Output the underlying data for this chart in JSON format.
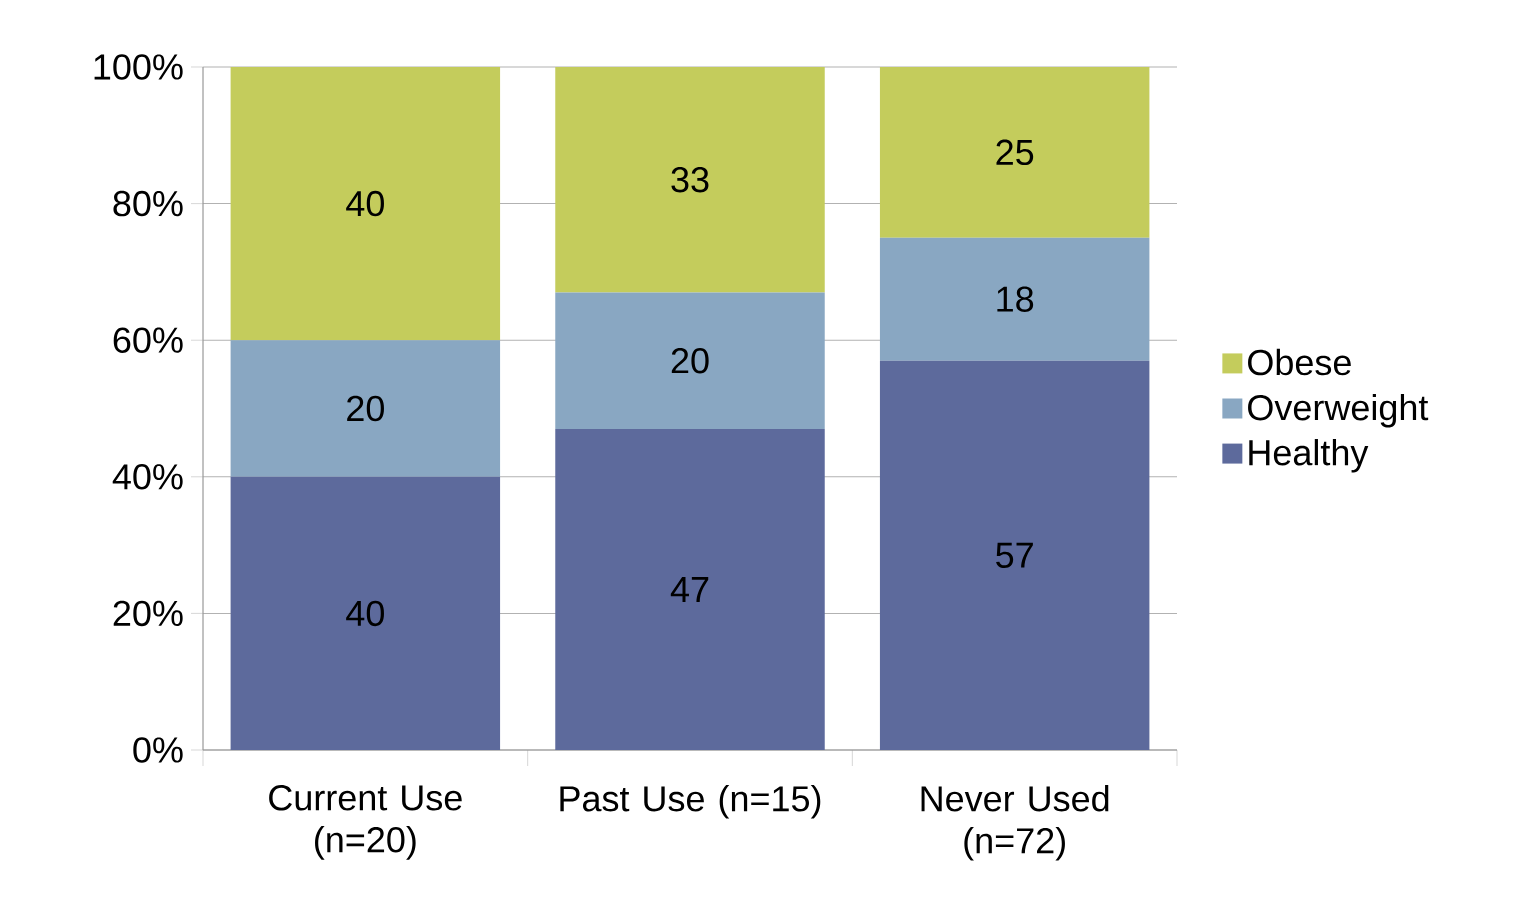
{
  "chart_data": {
    "type": "bar",
    "stacked": true,
    "categories": [
      "Current Use (n=20)",
      "Past Use (n=15)",
      "Never Used (n=72)"
    ],
    "series": [
      {
        "name": "Healthy",
        "color": "#5d6a9c",
        "values": [
          40,
          47,
          57
        ]
      },
      {
        "name": "Overweight",
        "color": "#89a7c2",
        "values": [
          20,
          20,
          18
        ]
      },
      {
        "name": "Obese",
        "color": "#c4cc5c",
        "values": [
          40,
          33,
          25
        ]
      }
    ],
    "ylim": [
      0,
      100
    ],
    "yticks": [
      {
        "value": 0,
        "label": "0%"
      },
      {
        "value": 20,
        "label": "20%"
      },
      {
        "value": 40,
        "label": "40%"
      },
      {
        "value": 60,
        "label": "60%"
      },
      {
        "value": 80,
        "label": "80%"
      },
      {
        "value": 100,
        "label": "100%"
      }
    ],
    "grid": "y",
    "legend": "right",
    "data_labels": true
  }
}
